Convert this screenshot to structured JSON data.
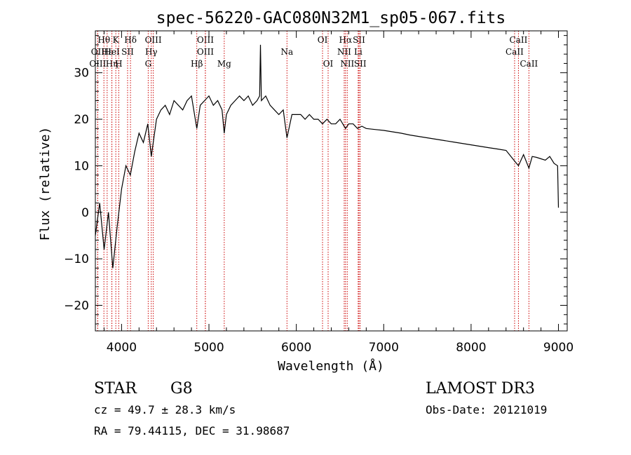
{
  "chart_data": {
    "type": "line",
    "title": "spec-56220-GAC080N32M1_sp05-067.fits",
    "xlabel": "Wavelength (Å)",
    "ylabel": "Flux (relative)",
    "xlim": [
      3700,
      9100
    ],
    "ylim": [
      -25.5,
      39
    ],
    "xticks": [
      4000,
      5000,
      6000,
      7000,
      8000,
      9000
    ],
    "xtick_labels": [
      "4000",
      "5000",
      "6000",
      "7000",
      "8000",
      "9000"
    ],
    "yticks": [
      -20,
      -10,
      0,
      10,
      20,
      30
    ],
    "ytick_labels": [
      "−20",
      "−10",
      "0",
      "10",
      "20",
      "30"
    ],
    "grid": false,
    "series": [
      {
        "name": "flux",
        "x": [
          3700,
          3750,
          3800,
          3850,
          3900,
          3950,
          4000,
          4050,
          4100,
          4150,
          4200,
          4250,
          4300,
          4340,
          4400,
          4450,
          4500,
          4550,
          4600,
          4650,
          4700,
          4750,
          4800,
          4861,
          4900,
          4950,
          5000,
          5050,
          5100,
          5150,
          5175,
          5200,
          5250,
          5300,
          5350,
          5400,
          5450,
          5500,
          5550,
          5580,
          5590,
          5600,
          5650,
          5700,
          5750,
          5800,
          5850,
          5893,
          5950,
          6000,
          6050,
          6100,
          6150,
          6200,
          6250,
          6300,
          6350,
          6400,
          6450,
          6500,
          6563,
          6600,
          6650,
          6700,
          6750,
          6800,
          6900,
          7000,
          7100,
          7200,
          7300,
          7400,
          7500,
          7600,
          7700,
          7800,
          7900,
          8000,
          8100,
          8200,
          8300,
          8400,
          8498,
          8542,
          8600,
          8662,
          8700,
          8750,
          8800,
          8850,
          8900,
          8950,
          8990,
          9000
        ],
        "y": [
          -5,
          2,
          -8,
          0,
          -12,
          -3,
          5,
          10,
          8,
          13,
          17,
          15,
          19,
          12,
          20,
          22,
          23,
          21,
          24,
          23,
          22,
          24,
          25,
          18,
          23,
          24,
          25,
          23,
          24,
          22,
          17,
          21,
          23,
          24,
          25,
          24,
          25,
          23,
          24,
          25,
          36,
          24,
          25,
          23,
          22,
          21,
          22,
          16,
          21,
          21,
          21,
          20,
          21,
          20,
          20,
          19,
          20,
          19,
          19,
          20,
          18,
          19,
          19,
          18,
          18.5,
          18,
          17.8,
          17.6,
          17.3,
          17,
          16.6,
          16.3,
          16,
          15.7,
          15.4,
          15.1,
          14.8,
          14.5,
          14.2,
          13.9,
          13.6,
          13.3,
          11,
          10,
          12.4,
          9.5,
          12,
          11.8,
          11.5,
          11.2,
          12,
          10.5,
          10,
          1
        ]
      }
    ],
    "lines": [
      {
        "label": "Hθ",
        "x": 3798,
        "row": 0
      },
      {
        "label": "OII",
        "x": 3727,
        "row": 1
      },
      {
        "label": "OIII",
        "x": 3727,
        "row": 2
      },
      {
        "label": "K",
        "x": 3934,
        "row": 0
      },
      {
        "label": "Hε",
        "x": 3835,
        "row": 1
      },
      {
        "label": "Hη",
        "x": 3889,
        "row": 2
      },
      {
        "label": "HeI",
        "x": 3889,
        "row": 1
      },
      {
        "label": "SII",
        "x": 4069,
        "row": 1
      },
      {
        "label": "H",
        "x": 3968,
        "row": 2
      },
      {
        "label": "Hδ",
        "x": 4102,
        "row": 0
      },
      {
        "label": "OIII",
        "x": 4363,
        "row": 0
      },
      {
        "label": "Hγ",
        "x": 4340,
        "row": 1
      },
      {
        "label": "G",
        "x": 4305,
        "row": 2
      },
      {
        "label": "OIII",
        "x": 4959,
        "row": 0
      },
      {
        "label": "OIII",
        "x": 4959,
        "row": 1
      },
      {
        "label": "Hβ",
        "x": 4861,
        "row": 2
      },
      {
        "label": "Mg",
        "x": 5175,
        "row": 2
      },
      {
        "label": "Na",
        "x": 5893,
        "row": 1
      },
      {
        "label": "OI",
        "x": 6300,
        "row": 0
      },
      {
        "label": "OI",
        "x": 6364,
        "row": 2
      },
      {
        "label": "Hα",
        "x": 6563,
        "row": 0
      },
      {
        "label": "SII",
        "x": 6717,
        "row": 0
      },
      {
        "label": "NII",
        "x": 6548,
        "row": 1
      },
      {
        "label": "Li",
        "x": 6708,
        "row": 1
      },
      {
        "label": "NII",
        "x": 6583,
        "row": 2
      },
      {
        "label": "SII",
        "x": 6731,
        "row": 2
      },
      {
        "label": "CaII",
        "x": 8542,
        "row": 0
      },
      {
        "label": "CaII",
        "x": 8498,
        "row": 1
      },
      {
        "label": "CaII",
        "x": 8662,
        "row": 2
      }
    ]
  },
  "info": {
    "class_label": "STAR",
    "subclass": "G8",
    "survey": "LAMOST DR3",
    "cz": "cz = 49.7 ± 28.3 km/s",
    "obs_date": "Obs-Date: 20121019",
    "coords": "RA =  79.44115, DEC =  31.98687"
  }
}
